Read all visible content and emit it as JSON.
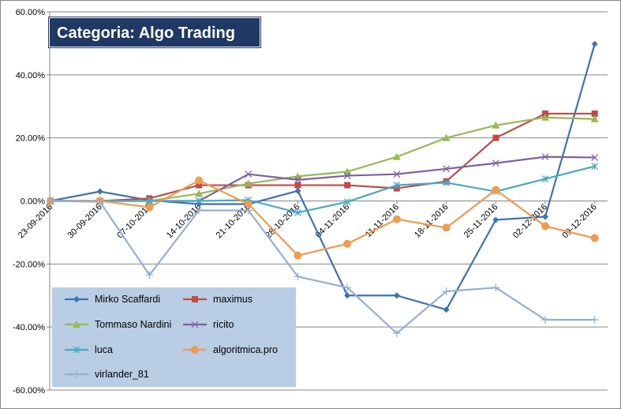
{
  "chart_data": {
    "type": "line",
    "title": "Categoria: Algo Trading",
    "xlabel": "",
    "ylabel": "",
    "ylim": [
      -60,
      60
    ],
    "yticks": [
      "-60.00%",
      "-40.00%",
      "-20.00%",
      "0.00%",
      "20.00%",
      "40.00%",
      "60.00%"
    ],
    "ytick_values": [
      -60,
      -40,
      -20,
      0,
      20,
      40,
      60
    ],
    "grid": true,
    "legend_placement": "bottom-left",
    "categories": [
      "23-09-2016",
      "30-09-2016",
      "07-10-2016",
      "14-10-2016",
      "21-10-2016",
      "28-10-2016",
      "04-11-2016",
      "11-11-2016",
      "18-11-2016",
      "25-11-2016",
      "02-12-2016",
      "09-12-2016"
    ],
    "series": [
      {
        "name": "Mirko Scaffardi",
        "color": "#3f72af",
        "marker": "diamond",
        "values": [
          0,
          3,
          0.2,
          -1,
          -1,
          3.2,
          -30,
          -30,
          -34.5,
          -6,
          -5,
          49.8
        ]
      },
      {
        "name": "maximus",
        "color": "#be4b48",
        "marker": "square",
        "values": [
          0,
          0,
          0.8,
          5,
          5,
          5,
          5,
          4,
          6.2,
          20,
          27.7,
          27.7
        ]
      },
      {
        "name": "Tommaso Nardini",
        "color": "#98b954",
        "marker": "triangle",
        "values": [
          0,
          0,
          0,
          2.3,
          5.5,
          7.8,
          9.3,
          14,
          20,
          24,
          26.5,
          26
        ]
      },
      {
        "name": "ricito",
        "color": "#7d60a0",
        "marker": "x",
        "values": [
          0,
          0,
          0,
          0,
          8.5,
          6.7,
          8,
          8.5,
          10.2,
          12,
          14,
          13.8
        ]
      },
      {
        "name": "luca",
        "color": "#46aac5",
        "marker": "star",
        "values": [
          0,
          0,
          0,
          0,
          0.3,
          -3.7,
          -0.3,
          5,
          5.8,
          3,
          7,
          11
        ]
      },
      {
        "name": "algoritmica.pro",
        "color": "#f09a50",
        "marker": "circle",
        "values": [
          0,
          0,
          -2,
          6.5,
          -1,
          -17.3,
          -13.6,
          -5.8,
          -8.5,
          3.5,
          -8,
          -11.8
        ]
      },
      {
        "name": "virlander_81",
        "color": "#95aed4",
        "marker": "plus",
        "values": [
          0,
          -0.3,
          -23.5,
          -3,
          -3,
          -24,
          -27.5,
          -42,
          -28.7,
          -27.5,
          -37.7,
          -37.7
        ]
      }
    ]
  }
}
